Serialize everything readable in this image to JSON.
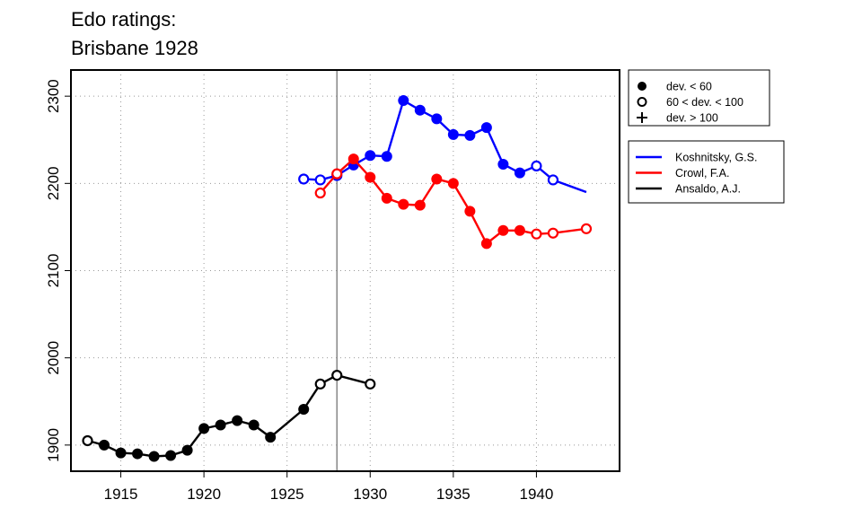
{
  "chart_data": {
    "type": "line",
    "title": [
      "Edo ratings:",
      "Brisbane 1928"
    ],
    "xlabel": "",
    "ylabel": "",
    "xlim": [
      1912,
      1945
    ],
    "ylim": [
      1870,
      2330
    ],
    "x_ticks": [
      1915,
      1920,
      1925,
      1930,
      1935,
      1940
    ],
    "y_ticks": [
      1900,
      2000,
      2100,
      2200,
      2300
    ],
    "grid": true,
    "marker_line_year": 1928,
    "marker_legend": [
      {
        "symbol": "filled",
        "label": "dev. < 60"
      },
      {
        "symbol": "open",
        "label": "60 < dev. < 100"
      },
      {
        "symbol": "plus",
        "label": "dev. > 100"
      }
    ],
    "series": [
      {
        "name": "Koshnitsky, G.S.",
        "color": "#0000ff",
        "points": [
          {
            "x": 1926,
            "y": 2205,
            "m": "open"
          },
          {
            "x": 1927,
            "y": 2204,
            "m": "open"
          },
          {
            "x": 1928,
            "y": 2209,
            "m": "open"
          },
          {
            "x": 1929,
            "y": 2221,
            "m": "filled"
          },
          {
            "x": 1930,
            "y": 2232,
            "m": "filled"
          },
          {
            "x": 1931,
            "y": 2231,
            "m": "filled"
          },
          {
            "x": 1932,
            "y": 2295,
            "m": "filled"
          },
          {
            "x": 1933,
            "y": 2284,
            "m": "filled"
          },
          {
            "x": 1934,
            "y": 2274,
            "m": "filled"
          },
          {
            "x": 1935,
            "y": 2256,
            "m": "filled"
          },
          {
            "x": 1936,
            "y": 2255,
            "m": "filled"
          },
          {
            "x": 1937,
            "y": 2264,
            "m": "filled"
          },
          {
            "x": 1938,
            "y": 2222,
            "m": "filled"
          },
          {
            "x": 1939,
            "y": 2212,
            "m": "filled"
          },
          {
            "x": 1940,
            "y": 2220,
            "m": "open"
          },
          {
            "x": 1941,
            "y": 2204,
            "m": "open"
          },
          {
            "x": 1943,
            "y": 2190,
            "m": "none"
          }
        ]
      },
      {
        "name": "Crowl, F.A.",
        "color": "#ff0000",
        "points": [
          {
            "x": 1927,
            "y": 2189,
            "m": "open"
          },
          {
            "x": 1928,
            "y": 2211,
            "m": "open"
          },
          {
            "x": 1929,
            "y": 2228,
            "m": "filled"
          },
          {
            "x": 1930,
            "y": 2207,
            "m": "filled"
          },
          {
            "x": 1931,
            "y": 2183,
            "m": "filled"
          },
          {
            "x": 1932,
            "y": 2176,
            "m": "filled"
          },
          {
            "x": 1933,
            "y": 2175,
            "m": "filled"
          },
          {
            "x": 1934,
            "y": 2205,
            "m": "filled"
          },
          {
            "x": 1935,
            "y": 2200,
            "m": "filled"
          },
          {
            "x": 1936,
            "y": 2168,
            "m": "filled"
          },
          {
            "x": 1937,
            "y": 2131,
            "m": "filled"
          },
          {
            "x": 1938,
            "y": 2146,
            "m": "filled"
          },
          {
            "x": 1939,
            "y": 2146,
            "m": "filled"
          },
          {
            "x": 1940,
            "y": 2142,
            "m": "open"
          },
          {
            "x": 1941,
            "y": 2143,
            "m": "open"
          },
          {
            "x": 1943,
            "y": 2148,
            "m": "open"
          }
        ]
      },
      {
        "name": "Ansaldo, A.J.",
        "color": "#000000",
        "points": [
          {
            "x": 1913,
            "y": 1905,
            "m": "open"
          },
          {
            "x": 1914,
            "y": 1900,
            "m": "filled"
          },
          {
            "x": 1915,
            "y": 1891,
            "m": "filled"
          },
          {
            "x": 1916,
            "y": 1890,
            "m": "filled"
          },
          {
            "x": 1917,
            "y": 1887,
            "m": "filled"
          },
          {
            "x": 1918,
            "y": 1888,
            "m": "filled"
          },
          {
            "x": 1919,
            "y": 1894,
            "m": "filled"
          },
          {
            "x": 1920,
            "y": 1919,
            "m": "filled"
          },
          {
            "x": 1921,
            "y": 1923,
            "m": "filled"
          },
          {
            "x": 1922,
            "y": 1928,
            "m": "filled"
          },
          {
            "x": 1923,
            "y": 1923,
            "m": "filled"
          },
          {
            "x": 1924,
            "y": 1909,
            "m": "filled"
          },
          {
            "x": 1926,
            "y": 1941,
            "m": "filled"
          },
          {
            "x": 1927,
            "y": 1970,
            "m": "open"
          },
          {
            "x": 1928,
            "y": 1980,
            "m": "open"
          },
          {
            "x": 1930,
            "y": 1970,
            "m": "open"
          }
        ]
      }
    ]
  }
}
